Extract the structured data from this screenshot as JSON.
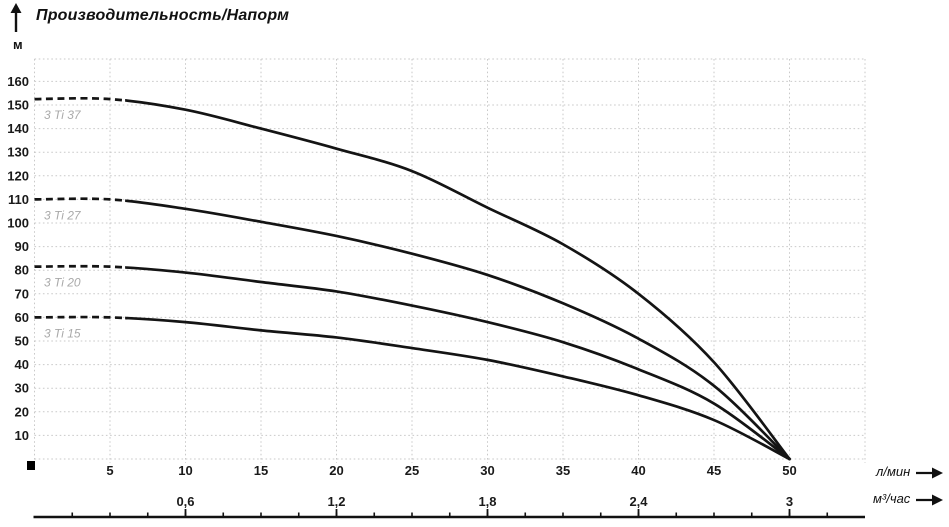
{
  "chart_data": {
    "type": "line",
    "title": "Производительность/Напорм",
    "ylabel": "м",
    "xlabel": "л/мин",
    "x2label": "м³/час",
    "xlim": [
      0,
      55
    ],
    "ylim": [
      0,
      169
    ],
    "grid": true,
    "x_ticks_lmin": [
      5,
      10,
      15,
      20,
      25,
      30,
      35,
      40,
      45,
      50
    ],
    "x_ticks_m3h": [
      {
        "label": "0,6",
        "lmin": 10
      },
      {
        "label": "1,2",
        "lmin": 20
      },
      {
        "label": "1,8",
        "lmin": 30
      },
      {
        "label": "2,4",
        "lmin": 40
      },
      {
        "label": "3",
        "lmin": 50
      }
    ],
    "y_ticks": [
      160,
      150,
      140,
      130,
      120,
      110,
      100,
      90,
      80,
      70,
      60,
      50,
      40,
      30,
      20,
      10
    ],
    "x": [
      0,
      5,
      10,
      15,
      20,
      25,
      30,
      35,
      40,
      45,
      50
    ],
    "dashed_until_x": 6,
    "series": [
      {
        "name": "3 Ti 37",
        "y": [
          152.5,
          152.5,
          148,
          140,
          131.5,
          122,
          106.5,
          91,
          70,
          41,
          0
        ]
      },
      {
        "name": "3 Ti 27",
        "y": [
          110,
          110,
          106,
          100.5,
          94.5,
          87,
          78,
          66,
          51,
          31,
          0
        ]
      },
      {
        "name": "3 Ti 20",
        "y": [
          81.5,
          81.5,
          79,
          75,
          71,
          65,
          58,
          49.5,
          38,
          23.5,
          0
        ]
      },
      {
        "name": "3 Ti 15",
        "y": [
          60,
          60,
          58,
          54.5,
          51.5,
          47,
          42,
          35,
          27,
          16.5,
          0
        ]
      }
    ],
    "colors": {
      "curve": "#141414",
      "grid": "#c9c9c9",
      "text": "#1a1a1a",
      "series_label": "#a9a9a9"
    }
  }
}
